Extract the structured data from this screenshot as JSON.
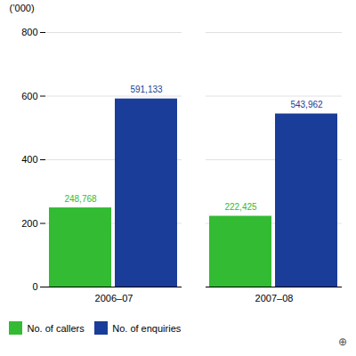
{
  "chart_data": {
    "type": "bar",
    "categories": [
      "2006–07",
      "2007–08"
    ],
    "series": [
      {
        "name": "No. of callers",
        "color": "#33bb33",
        "values": [
          248.768,
          222.425
        ],
        "value_labels": [
          "248,768",
          "222,425"
        ]
      },
      {
        "name": "No. of enquiries",
        "color": "#1a3d99",
        "values": [
          591.133,
          543.962
        ],
        "value_labels": [
          "591,133",
          "543,962"
        ]
      }
    ],
    "ylabel": "(’000)",
    "ylim": [
      0,
      800
    ],
    "yticks": [
      0,
      200,
      400,
      600,
      800
    ],
    "grid": true,
    "legend": "bottom",
    "data_labels": true,
    "annotations": [
      "⊕"
    ]
  }
}
